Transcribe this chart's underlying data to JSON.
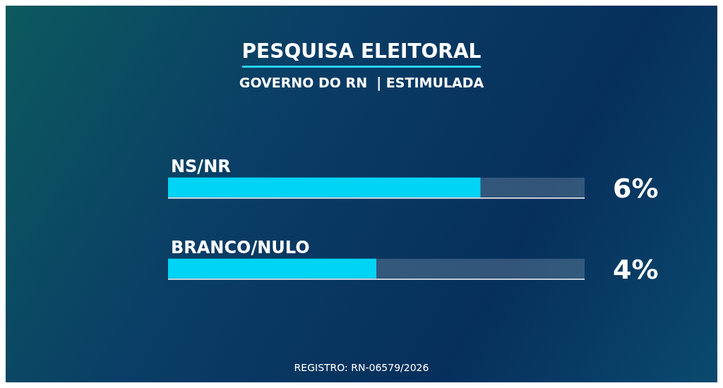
{
  "chart_data": {
    "type": "bar",
    "orientation": "horizontal",
    "title": "PESQUISA ELEITORAL",
    "subtitle": "GOVERNO DO RN  | ESTIMULADA",
    "categories": [
      "NS/NR",
      "BRANCO/NULO"
    ],
    "values": [
      6,
      4
    ],
    "color": "#00d4f5",
    "value_labels": [
      "6%",
      "4%"
    ],
    "annotations": [
      "REGISTRO: RN-06579/2026"
    ]
  }
}
